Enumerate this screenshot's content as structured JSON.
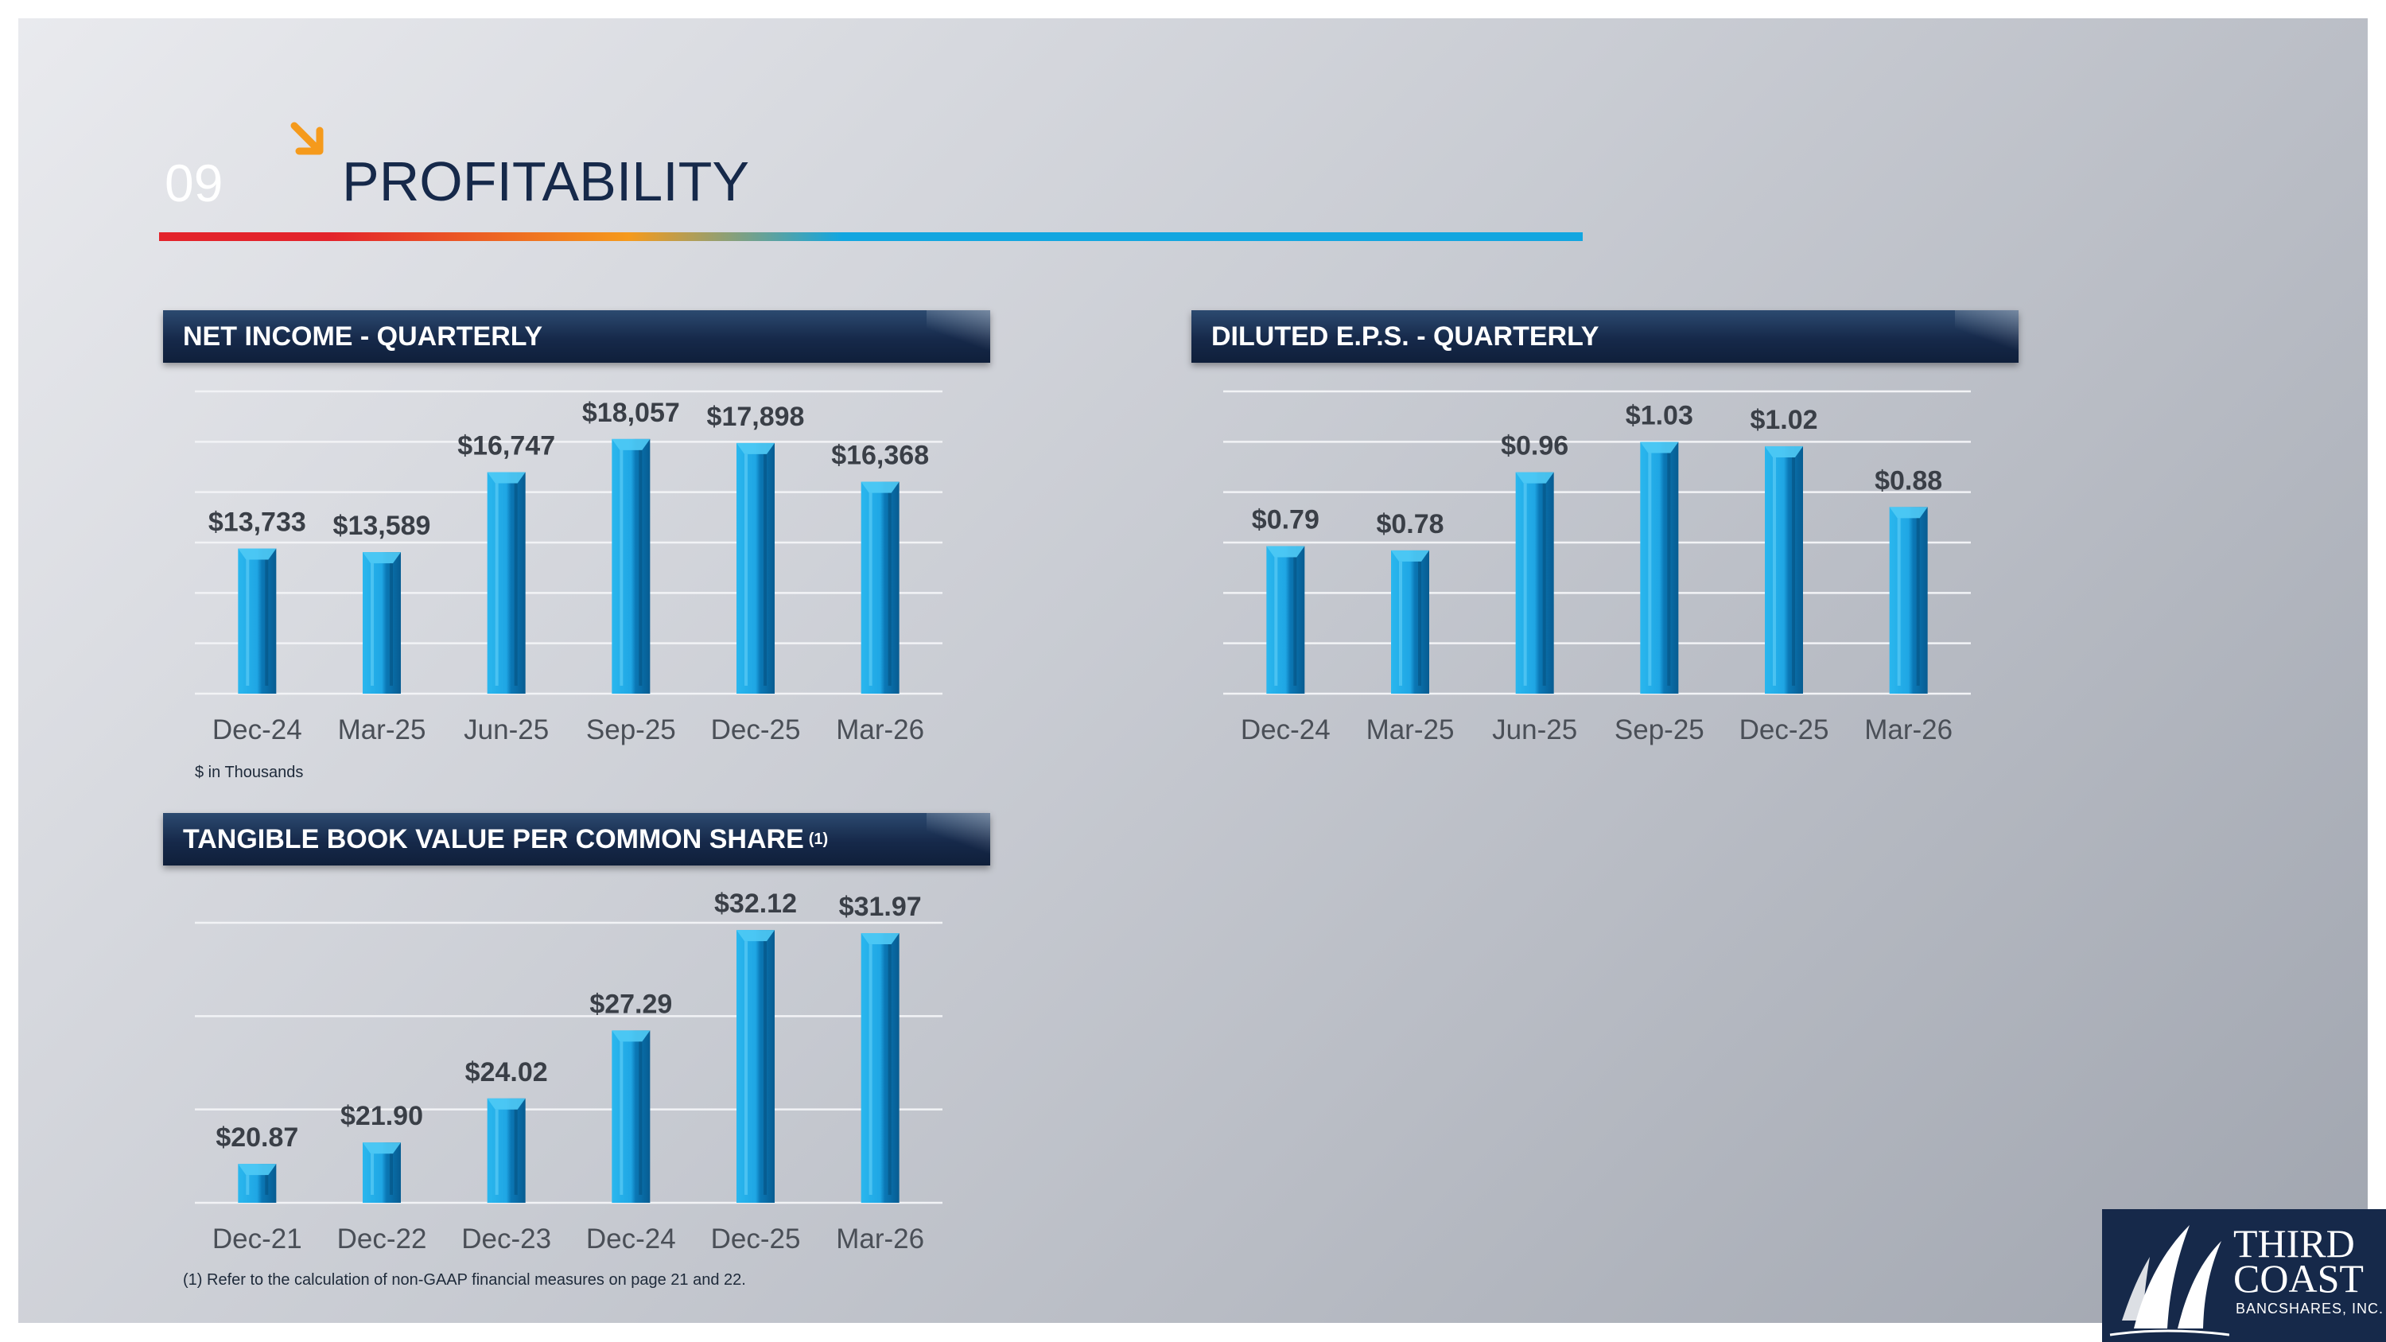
{
  "section_number": "09",
  "section_title": "PROFITABILITY",
  "colors": {
    "navy": "#16294a",
    "bar_light": "#2ab7ee",
    "bar_dark": "#0b78b6",
    "accent_orange": "#f59a1c",
    "accent_red": "#e3232b"
  },
  "panels": {
    "net_income": {
      "title": "NET INCOME - QUARTERLY",
      "footnote": "$ in Thousands"
    },
    "eps": {
      "title": "DILUTED E.P.S. - QUARTERLY"
    },
    "tbv": {
      "title": "TANGIBLE BOOK VALUE PER COMMON SHARE",
      "superscript": "(1)"
    }
  },
  "footnote": "(1) Refer to the calculation of non-GAAP financial measures on page 21 and 22.",
  "logo": {
    "line1": "THIRD",
    "line2": "COAST",
    "line3": "BANCSHARES, INC."
  },
  "chart_data": [
    {
      "id": "net_income",
      "type": "bar",
      "title": "NET INCOME - QUARTERLY",
      "categories": [
        "Dec-24",
        "Mar-25",
        "Jun-25",
        "Sep-25",
        "Dec-25",
        "Mar-26"
      ],
      "values": [
        13733,
        13589,
        16747,
        18057,
        17898,
        16368
      ],
      "labels": [
        "$13,733",
        "$13,589",
        "$16,747",
        "$18,057",
        "$17,898",
        "$16,368"
      ],
      "ylim": [
        8000,
        20000
      ],
      "grid": true,
      "gridlines": 7
    },
    {
      "id": "eps",
      "type": "bar",
      "title": "DILUTED E.P.S. - QUARTERLY",
      "categories": [
        "Dec-24",
        "Mar-25",
        "Jun-25",
        "Sep-25",
        "Dec-25",
        "Mar-26"
      ],
      "values": [
        0.79,
        0.78,
        0.96,
        1.03,
        1.02,
        0.88
      ],
      "labels": [
        "$0.79",
        "$0.78",
        "$0.96",
        "$1.03",
        "$1.02",
        "$0.88"
      ],
      "ylim": [
        0.45,
        1.15
      ],
      "grid": true,
      "gridlines": 7
    },
    {
      "id": "tbv",
      "type": "bar",
      "title": "TANGIBLE BOOK VALUE PER COMMON SHARE",
      "categories": [
        "Dec-21",
        "Dec-22",
        "Dec-23",
        "Dec-24",
        "Dec-25",
        "Mar-26"
      ],
      "values": [
        20.87,
        21.9,
        24.02,
        27.29,
        32.12,
        31.97
      ],
      "labels": [
        "$20.87",
        "$21.90",
        "$24.02",
        "$27.29",
        "$32.12",
        "$31.97"
      ],
      "ylim": [
        19,
        34
      ],
      "grid": true,
      "gridlines": 4
    }
  ]
}
